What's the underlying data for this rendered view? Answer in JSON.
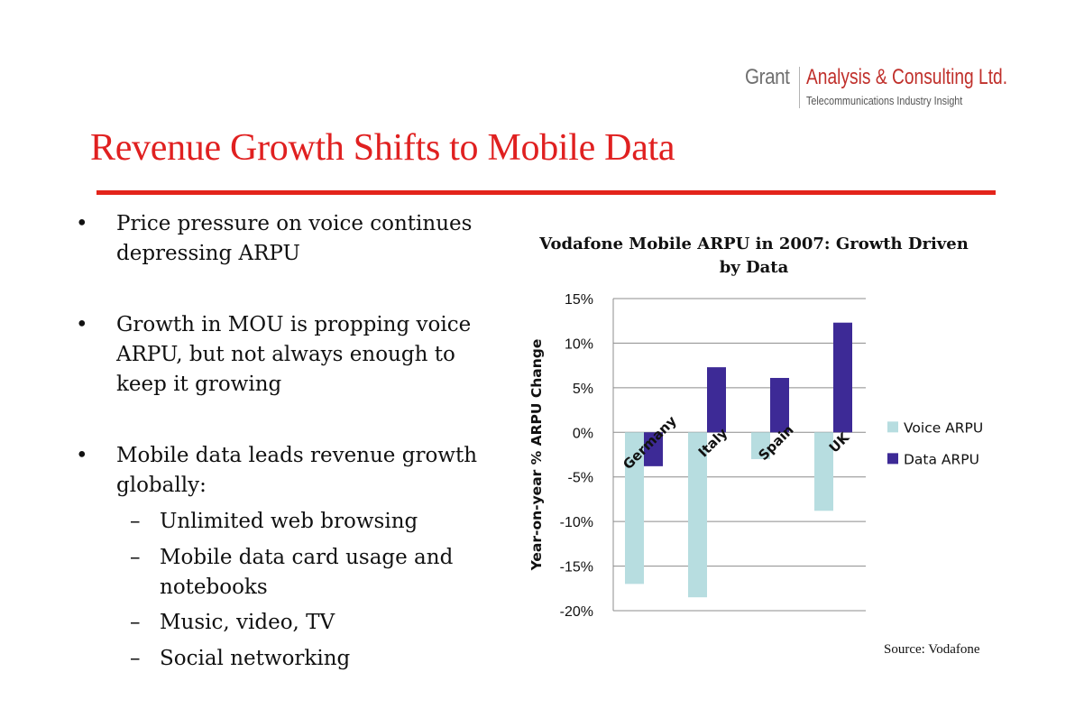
{
  "logo": {
    "grant": "Grant",
    "company": "Analysis & Consulting Ltd.",
    "tagline": "Telecommunications Industry Insight"
  },
  "slide": {
    "title": "Revenue Growth Shifts to Mobile Data"
  },
  "bullets": [
    {
      "text": "Price pressure on voice continues depressing ARPU"
    },
    {
      "text": "Growth in MOU is propping voice ARPU, but not always enough to keep it growing"
    },
    {
      "text": "Mobile data leads revenue growth globally:"
    }
  ],
  "sub_bullets": [
    "Unlimited web browsing",
    "Mobile data card usage and notebooks",
    "Music, video, TV",
    "Social networking"
  ],
  "glyphs": {
    "bullet": "•",
    "dash": "–"
  },
  "source": "Source: Vodafone",
  "chart_data": {
    "type": "bar",
    "title": "Vodafone Mobile ARPU in 2007: Growth Driven by Data",
    "ylabel": "Year-on-year % ARPU Change",
    "xlabel": "",
    "categories": [
      "Germany",
      "Italy",
      "Spain",
      "UK"
    ],
    "series": [
      {
        "name": "Voice ARPU",
        "values": [
          -17,
          -18.5,
          -3,
          -8.8
        ],
        "color": "#b7dde0"
      },
      {
        "name": "Data ARPU",
        "values": [
          -3.8,
          7.3,
          6.1,
          12.3
        ],
        "color": "#3d2a96"
      }
    ],
    "ylim": [
      -20,
      15
    ],
    "yticks": [
      15,
      10,
      5,
      0,
      -5,
      -10,
      -15,
      -20
    ],
    "ytick_labels": [
      "15%",
      "10%",
      "5%",
      "0%",
      "-5%",
      "-10%",
      "-15%",
      "-20%"
    ],
    "grid": true,
    "legend_position": "right"
  }
}
